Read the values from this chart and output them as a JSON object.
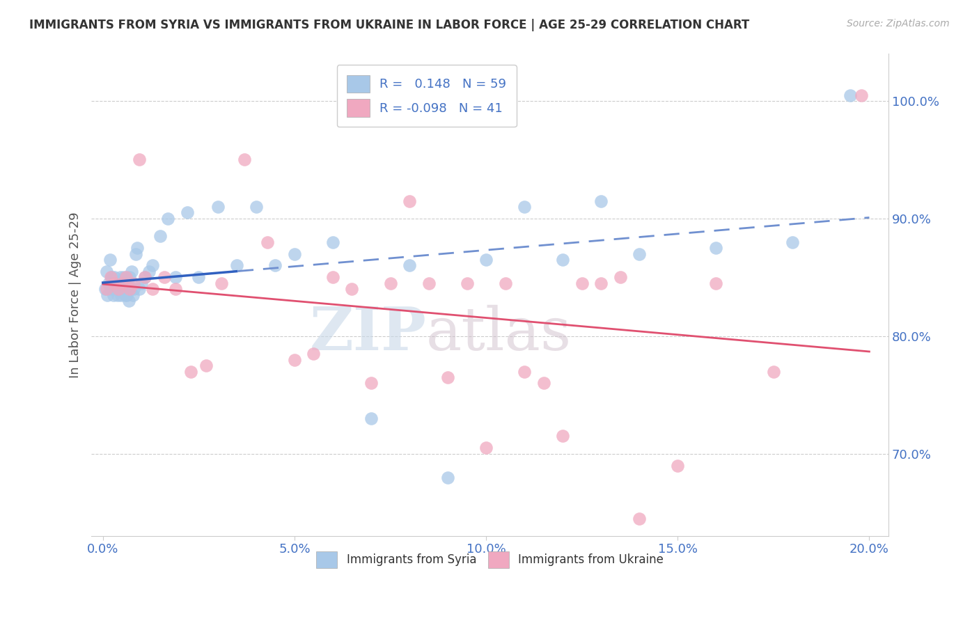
{
  "title": "IMMIGRANTS FROM SYRIA VS IMMIGRANTS FROM UKRAINE IN LABOR FORCE | AGE 25-29 CORRELATION CHART",
  "source": "Source: ZipAtlas.com",
  "xlabel_values": [
    0.0,
    5.0,
    10.0,
    15.0,
    20.0
  ],
  "ylabel_values": [
    70.0,
    80.0,
    90.0,
    100.0
  ],
  "xlim": [
    -0.3,
    20.5
  ],
  "ylim": [
    63.0,
    104.0
  ],
  "syria_color": "#a8c8e8",
  "ukraine_color": "#f0a8c0",
  "syria_line_color": "#3060c0",
  "ukraine_line_color": "#e05070",
  "syria_dash_color": "#7090d0",
  "watermark_zip": "ZIP",
  "watermark_atlas": "atlas",
  "syria_x": [
    0.05,
    0.1,
    0.12,
    0.15,
    0.18,
    0.2,
    0.22,
    0.25,
    0.28,
    0.3,
    0.32,
    0.35,
    0.38,
    0.4,
    0.42,
    0.45,
    0.48,
    0.5,
    0.52,
    0.55,
    0.58,
    0.6,
    0.62,
    0.65,
    0.68,
    0.7,
    0.72,
    0.75,
    0.78,
    0.8,
    0.85,
    0.9,
    0.95,
    1.0,
    1.1,
    1.2,
    1.3,
    1.5,
    1.7,
    1.9,
    2.2,
    2.5,
    3.0,
    3.5,
    4.0,
    4.5,
    5.0,
    6.0,
    7.0,
    8.0,
    9.0,
    10.0,
    11.0,
    12.0,
    13.0,
    14.0,
    16.0,
    18.0,
    19.5
  ],
  "syria_y": [
    84.0,
    85.5,
    83.5,
    84.5,
    86.5,
    84.0,
    85.0,
    84.5,
    83.5,
    85.0,
    84.0,
    84.5,
    83.5,
    84.0,
    84.5,
    85.0,
    83.5,
    84.0,
    84.5,
    85.0,
    83.5,
    84.0,
    83.5,
    84.5,
    83.0,
    85.0,
    84.0,
    85.5,
    83.5,
    84.0,
    87.0,
    87.5,
    84.0,
    84.5,
    85.0,
    85.5,
    86.0,
    88.5,
    90.0,
    85.0,
    90.5,
    85.0,
    91.0,
    86.0,
    91.0,
    86.0,
    87.0,
    88.0,
    73.0,
    86.0,
    68.0,
    86.5,
    91.0,
    86.5,
    91.5,
    87.0,
    87.5,
    88.0,
    100.5
  ],
  "ukraine_x": [
    0.1,
    0.2,
    0.3,
    0.4,
    0.5,
    0.6,
    0.7,
    0.8,
    0.95,
    1.1,
    1.3,
    1.6,
    1.9,
    2.3,
    2.7,
    3.1,
    3.7,
    4.3,
    5.0,
    5.5,
    6.0,
    6.5,
    7.0,
    7.5,
    8.0,
    8.5,
    9.0,
    9.5,
    10.0,
    10.5,
    11.0,
    11.5,
    12.0,
    12.5,
    13.0,
    13.5,
    14.0,
    15.0,
    16.0,
    17.5,
    19.8
  ],
  "ukraine_y": [
    84.0,
    85.0,
    84.5,
    84.0,
    84.5,
    85.0,
    84.0,
    84.5,
    95.0,
    85.0,
    84.0,
    85.0,
    84.0,
    77.0,
    77.5,
    84.5,
    95.0,
    88.0,
    78.0,
    78.5,
    85.0,
    84.0,
    76.0,
    84.5,
    91.5,
    84.5,
    76.5,
    84.5,
    70.5,
    84.5,
    77.0,
    76.0,
    71.5,
    84.5,
    84.5,
    85.0,
    64.5,
    69.0,
    84.5,
    77.0,
    100.5
  ],
  "syria_solid_end": 3.5,
  "ukraine_solid_end": 20.5
}
